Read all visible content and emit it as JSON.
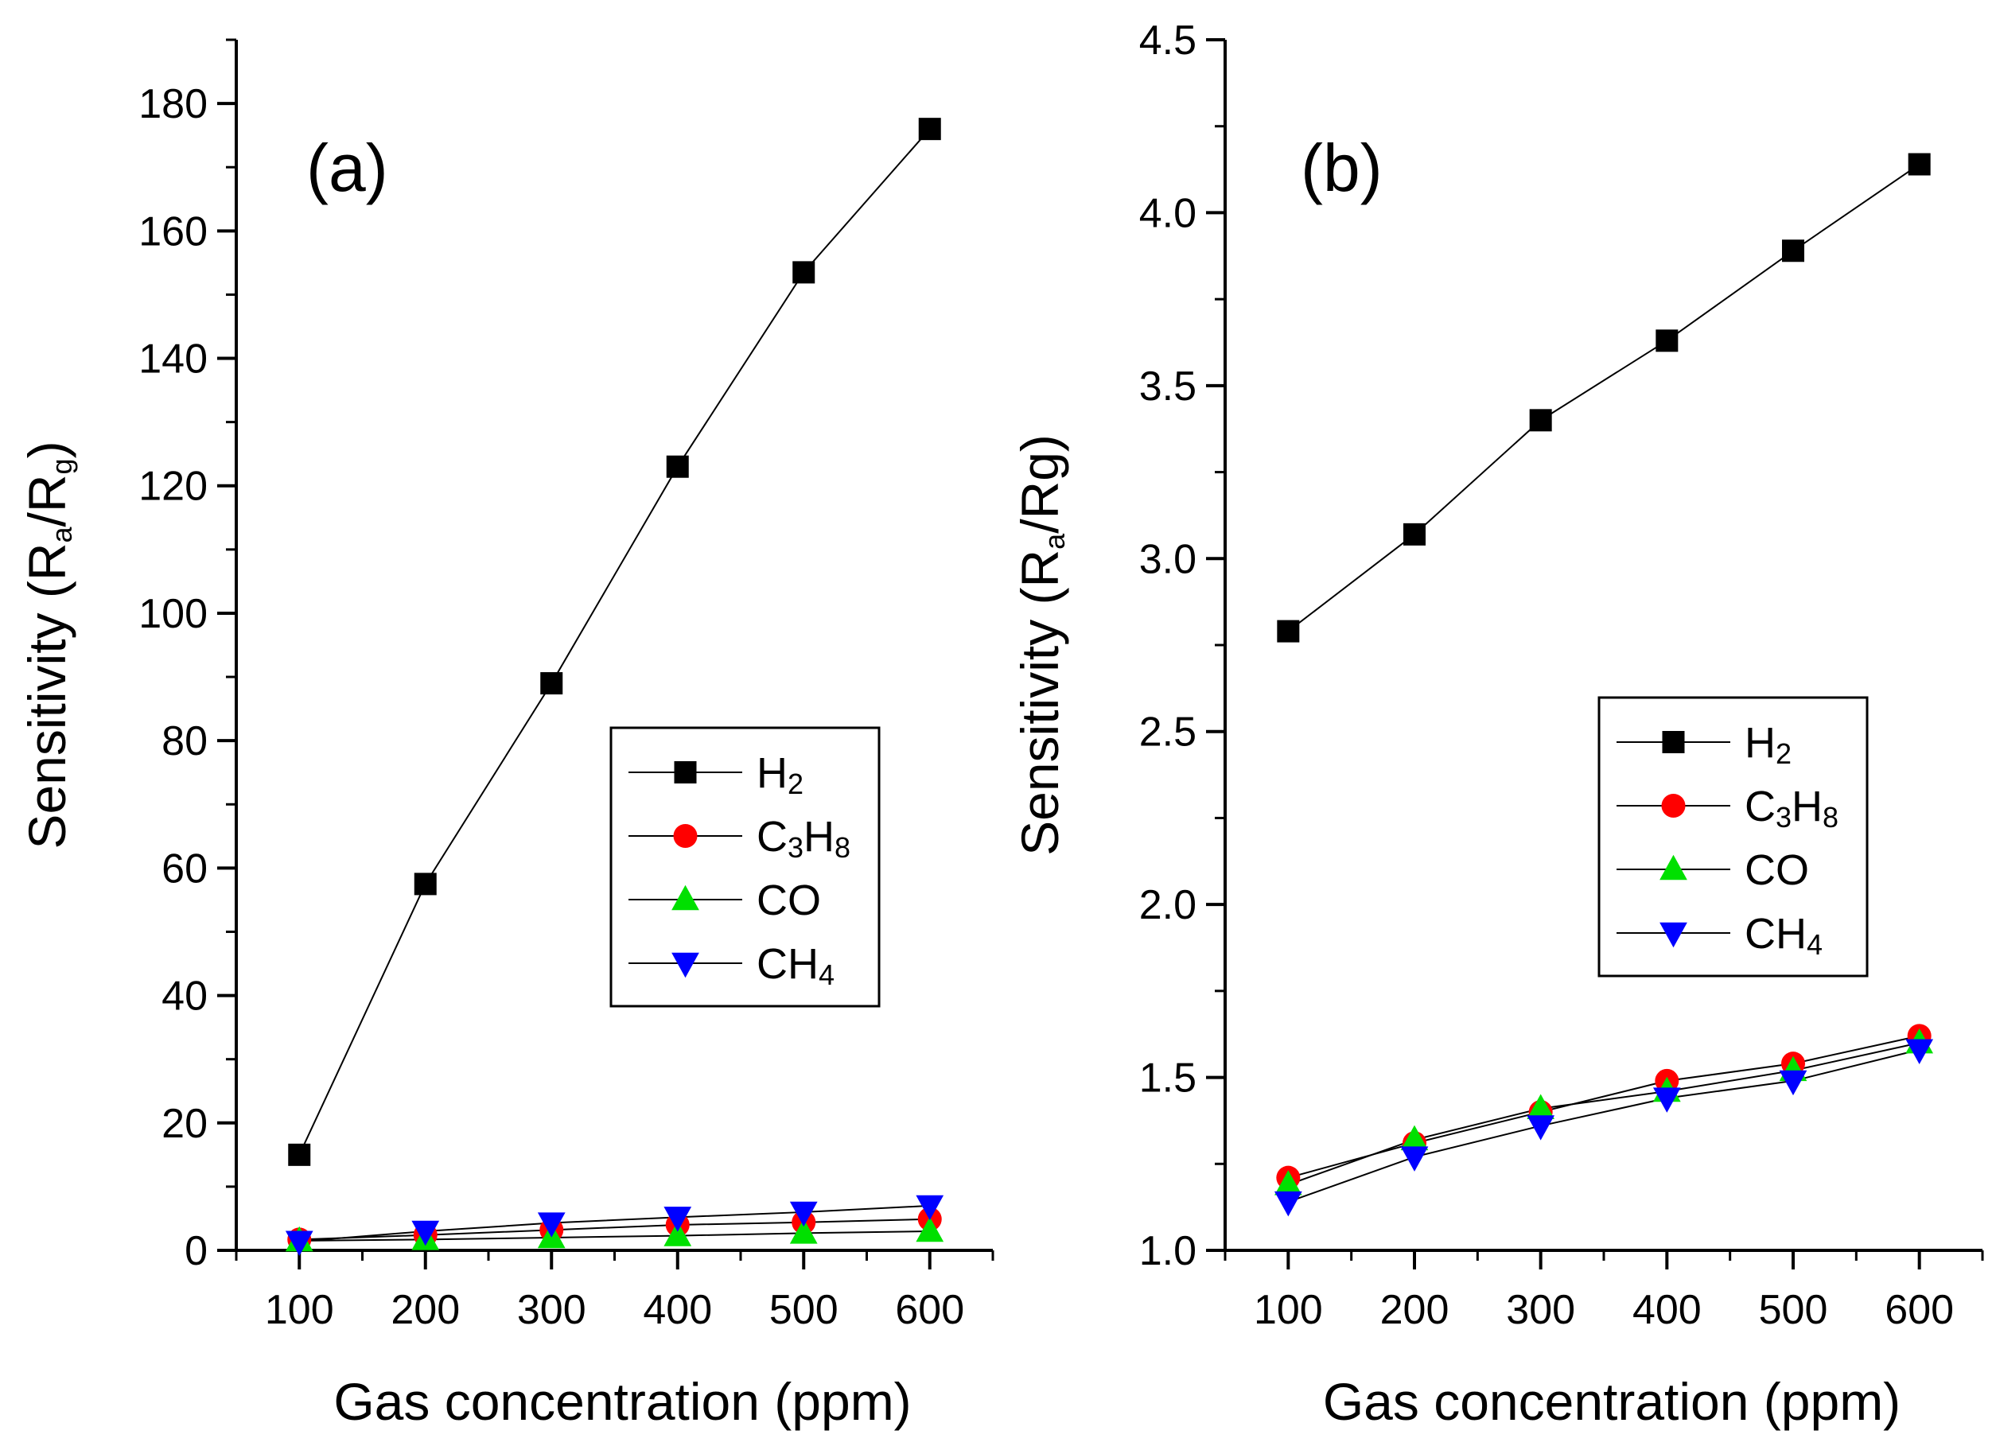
{
  "chart_data": [
    {
      "type": "line",
      "panel_label": "(a)",
      "xlabel": "Gas concentration (ppm)",
      "ylabel": "Sensitivity (R_a/R_g)",
      "xlim": [
        50,
        650
      ],
      "ylim": [
        0,
        190
      ],
      "x_ticks": [
        100,
        200,
        300,
        400,
        500,
        600
      ],
      "y_ticks": [
        0,
        20,
        40,
        60,
        80,
        100,
        120,
        140,
        160,
        180
      ],
      "x_tick_labels": [
        "100",
        "200",
        "300",
        "400",
        "500",
        "600"
      ],
      "y_tick_labels": [
        "0",
        "20",
        "40",
        "60",
        "80",
        "100",
        "120",
        "140",
        "160",
        "180"
      ],
      "grid": false,
      "legend_position": "center-right",
      "x": [
        100,
        200,
        300,
        400,
        500,
        600
      ],
      "series": [
        {
          "name": "H2",
          "marker": "square",
          "color": "#000000",
          "values": [
            15,
            57.5,
            89,
            123,
            153.5,
            176
          ]
        },
        {
          "name": "C3H8",
          "marker": "circle",
          "color": "#ff0000",
          "values": [
            1.7,
            2.4,
            3.2,
            4.0,
            4.4,
            4.9
          ]
        },
        {
          "name": "CO",
          "marker": "triangle-up",
          "color": "#00e000",
          "values": [
            1.5,
            1.7,
            2.0,
            2.3,
            2.7,
            3.0
          ]
        },
        {
          "name": "CH4",
          "marker": "triangle-down",
          "color": "#0000ff",
          "values": [
            1.4,
            3.0,
            4.3,
            5.2,
            6.0,
            7.0
          ]
        }
      ]
    },
    {
      "type": "line",
      "panel_label": "(b)",
      "xlabel": "Gas concentration (ppm)",
      "ylabel": "Sensitivity (R_a/Rg)",
      "xlim": [
        50,
        650
      ],
      "ylim": [
        1.0,
        4.5
      ],
      "x_ticks": [
        100,
        200,
        300,
        400,
        500,
        600
      ],
      "y_ticks": [
        1.0,
        1.5,
        2.0,
        2.5,
        3.0,
        3.5,
        4.0,
        4.5
      ],
      "x_tick_labels": [
        "100",
        "200",
        "300",
        "400",
        "500",
        "600"
      ],
      "y_tick_labels": [
        "1.0",
        "1.5",
        "2.0",
        "2.5",
        "3.0",
        "3.5",
        "4.0",
        "4.5"
      ],
      "grid": false,
      "legend_position": "center-right",
      "x": [
        100,
        200,
        300,
        400,
        500,
        600
      ],
      "series": [
        {
          "name": "H2",
          "marker": "square",
          "color": "#000000",
          "values": [
            2.79,
            3.07,
            3.4,
            3.63,
            3.89,
            4.14
          ]
        },
        {
          "name": "C3H8",
          "marker": "circle",
          "color": "#ff0000",
          "values": [
            1.21,
            1.31,
            1.4,
            1.49,
            1.54,
            1.62
          ]
        },
        {
          "name": "CO",
          "marker": "triangle-up",
          "color": "#00e000",
          "values": [
            1.19,
            1.32,
            1.41,
            1.46,
            1.52,
            1.6
          ]
        },
        {
          "name": "CH4",
          "marker": "triangle-down",
          "color": "#0000ff",
          "values": [
            1.14,
            1.27,
            1.36,
            1.44,
            1.49,
            1.58
          ]
        }
      ]
    }
  ],
  "legend_text": {
    "H2": {
      "main": "H",
      "sub": "2"
    },
    "C3H8": {
      "parts": [
        {
          "t": "C"
        },
        {
          "t": "3",
          "sub": true
        },
        {
          "t": "H"
        },
        {
          "t": "8",
          "sub": true
        }
      ]
    },
    "CO": {
      "main": "CO",
      "sub": ""
    },
    "CH4": {
      "main": "CH",
      "sub": "4"
    }
  },
  "ylabel_parts": {
    "a": [
      {
        "t": "Sensitivity (R"
      },
      {
        "t": "a",
        "sub": true
      },
      {
        "t": "/R"
      },
      {
        "t": "g",
        "sub": true
      },
      {
        "t": ")"
      }
    ],
    "b": [
      {
        "t": "Sensitivity (R"
      },
      {
        "t": "a",
        "sub": true
      },
      {
        "t": "/Rg)"
      }
    ]
  }
}
